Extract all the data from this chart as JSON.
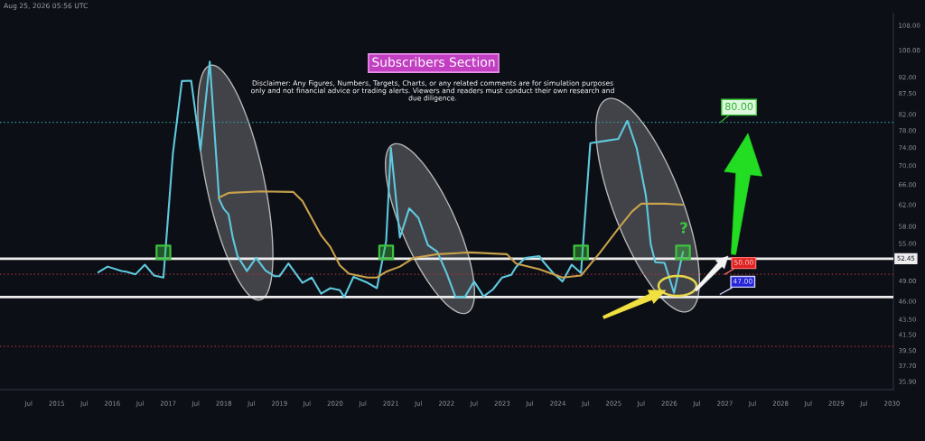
{
  "chart_data": {
    "type": "line",
    "title": "Subscribers Section",
    "annotations": [
      {
        "text": "80.00",
        "x": "2026-12",
        "y": 80
      },
      {
        "text": "50.00",
        "x": "2027-01",
        "y": 50
      },
      {
        "text": "47.00",
        "x": "2026-12",
        "y": 47
      },
      "?",
      "Disclaimer: Any Figures, Numbers, Targets, Charts, or any related comments are for simulation purposes\nonly and not financial advice or trading alerts. Viewers and readers must conduct their own research and\ndue diligence.",
      "Aug 25, 2026 05:56 UTC"
    ],
    "series": [
      {
        "color": "#5fc9de",
        "x": [
          "2015-10",
          "2015-12",
          "2016-03",
          "2016-04",
          "2016-06",
          "2016-08",
          "2016-10",
          "2016-12",
          "2017-02",
          "2017-04",
          "2017-06",
          "2017-08",
          "2017-10",
          "2017-12",
          "2018-01",
          "2018-02",
          "2018-03",
          "2018-04",
          "2018-06",
          "2018-08",
          "2018-10",
          "2018-12",
          "2019-01",
          "2019-03",
          "2019-06",
          "2019-08",
          "2019-10",
          "2019-12",
          "2020-02",
          "2020-03",
          "2020-05",
          "2020-08",
          "2020-10",
          "2020-12",
          "2021-01",
          "2021-03",
          "2021-05",
          "2021-07",
          "2021-09",
          "2021-11",
          "2022-01",
          "2022-03",
          "2022-05",
          "2022-07",
          "2022-09",
          "2022-11",
          "2023-01",
          "2023-03",
          "2023-04",
          "2023-06",
          "2023-09",
          "2023-10",
          "2023-12",
          "2024-02",
          "2024-04",
          "2024-06",
          "2024-08",
          "2024-11",
          "2025-02",
          "2025-04",
          "2025-06",
          "2025-08",
          "2025-09",
          "2025-10",
          "2025-12",
          "2026-02",
          "2026-04"
        ],
        "values": [
          50.3,
          51.2,
          50.5,
          50.4,
          50.0,
          51.5,
          49.8,
          49.5,
          72.6,
          90.9,
          91.0,
          73.4,
          96.5,
          63.1,
          61.2,
          60.2,
          56.0,
          52.9,
          50.5,
          52.6,
          50.6,
          49.7,
          49.7,
          51.7,
          48.7,
          49.5,
          47.1,
          47.9,
          47.6,
          46.6,
          49.6,
          48.7,
          47.9,
          55.4,
          73.9,
          56.0,
          61.3,
          59.5,
          54.7,
          53.6,
          50.2,
          46.6,
          46.6,
          48.9,
          46.7,
          47.7,
          49.5,
          49.9,
          51.1,
          52.6,
          52.9,
          51.9,
          50.2,
          48.9,
          51.5,
          50.2,
          75.0,
          75.5,
          76.0,
          80.4,
          73.9,
          63.7,
          54.9,
          51.9,
          51.8,
          47.2,
          53.6
        ]
      },
      {
        "color": "#c9a24c",
        "x": [
          "2017-12",
          "2018-02",
          "2018-09",
          "2019-04",
          "2019-06",
          "2019-10",
          "2019-12",
          "2020-02",
          "2020-04",
          "2020-08",
          "2020-10",
          "2020-12",
          "2021-03",
          "2021-06",
          "2021-11",
          "2022-06",
          "2023-02",
          "2023-04",
          "2023-09",
          "2024-02",
          "2024-06",
          "2024-10",
          "2025-02",
          "2025-05",
          "2025-07",
          "2025-12",
          "2026-04"
        ],
        "values": [
          63.4,
          64.3,
          64.6,
          64.5,
          62.7,
          56.4,
          54.4,
          51.4,
          50.1,
          49.5,
          49.5,
          50.4,
          51.2,
          52.6,
          53.2,
          53.5,
          53.2,
          51.7,
          50.8,
          49.5,
          49.8,
          53.4,
          57.6,
          60.7,
          62.2,
          62.2,
          62.0
        ]
      },
      {
        "type": "scatter",
        "marker": "square",
        "color": "#3fc23f",
        "x": [
          "2016-12",
          "2020-12",
          "2024-06",
          "2026-04"
        ],
        "values": [
          53.5,
          53.5,
          53.5,
          53.5
        ]
      }
    ],
    "xlim": [
      "2013-12-25",
      "2030-01-10"
    ],
    "xticks": [
      {
        "value": "2014-07",
        "label": "Jul"
      },
      "2015",
      {
        "value": "2015-07",
        "label": "Jul"
      },
      "2016",
      {
        "value": "2016-07",
        "label": "Jul"
      },
      "2017",
      {
        "value": "2017-07",
        "label": "Jul"
      },
      "2018",
      {
        "value": "2018-07",
        "label": "Jul"
      },
      "2019",
      {
        "value": "2019-07",
        "label": "Jul"
      },
      "2020",
      {
        "value": "2020-07",
        "label": "Jul"
      },
      "2021",
      {
        "value": "2021-07",
        "label": "Jul"
      },
      "2022",
      {
        "value": "2022-07",
        "label": "Jul"
      },
      "2023",
      {
        "value": "2023-07",
        "label": "Jul"
      },
      "2024",
      {
        "value": "2024-07",
        "label": "Jul"
      },
      "2025",
      {
        "value": "2025-07",
        "label": "Jul"
      },
      "2026",
      {
        "value": "2026-07",
        "label": "Jul"
      },
      "2027",
      {
        "value": "2027-07",
        "label": "Jul"
      },
      "2028",
      {
        "value": "2028-07",
        "label": "Jul"
      },
      "2029",
      {
        "value": "2029-07",
        "label": "Jul"
      },
      "2030"
    ],
    "ylim": [
      35,
      112
    ],
    "log": true,
    "yticks": [
      {
        "value": 35.9,
        "label": "35.90"
      },
      {
        "value": 37.7,
        "label": "37.70"
      },
      {
        "value": 39.5,
        "label": "39.50"
      },
      {
        "value": 41.5,
        "label": "41.50"
      },
      {
        "value": 43.5,
        "label": "43.50"
      },
      {
        "value": 46,
        "label": "46.00"
      },
      {
        "value": 49,
        "label": "49.00"
      },
      {
        "value": 55,
        "label": "55.00"
      },
      {
        "value": 58,
        "label": "58.00"
      },
      {
        "value": 62,
        "label": "62.00"
      },
      {
        "value": 66,
        "label": "66.00"
      },
      {
        "value": 70,
        "label": "70.00"
      },
      {
        "value": 74,
        "label": "74.00"
      },
      {
        "value": 78,
        "label": "78.00"
      },
      {
        "value": 82,
        "label": "82.00"
      },
      {
        "value": 87.5,
        "label": "87.50"
      },
      {
        "value": 92,
        "label": "92.00"
      },
      {
        "value": 100,
        "label": "100.00"
      },
      {
        "value": 108,
        "label": "108.00"
      }
    ],
    "ref_lines": [
      {
        "axis": "y",
        "value": 52.45,
        "label": "52.45",
        "color": "#eeeeee",
        "line_style": "solid"
      },
      {
        "axis": "y",
        "value": 46.6,
        "color": "#eeeeee",
        "line_style": "solid"
      },
      {
        "axis": "y",
        "value": 80,
        "color": "#3f9fa6",
        "line_style": "dotted"
      },
      {
        "axis": "y",
        "value": 50,
        "color": "#a8323a",
        "line_style": "dotted"
      },
      {
        "axis": "y",
        "value": 40,
        "color": "#a8323a",
        "line_style": "dotted"
      }
    ]
  }
}
